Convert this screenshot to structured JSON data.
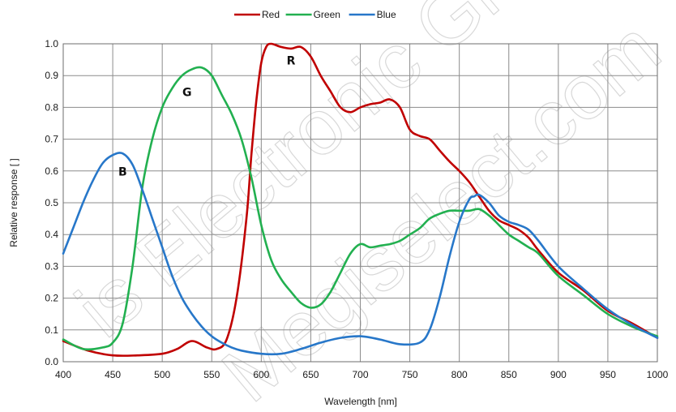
{
  "chart_data": {
    "type": "line",
    "title": "",
    "xlabel": "Wavelength [nm]",
    "ylabel": "Relative response [ ]",
    "xlim": [
      400,
      1000
    ],
    "ylim": [
      0.0,
      1.0
    ],
    "xticks": [
      400,
      450,
      500,
      550,
      600,
      650,
      700,
      750,
      800,
      850,
      900,
      950,
      1000
    ],
    "xtick_labels": [
      "400",
      "450",
      "500",
      "550",
      "600",
      "650",
      "700",
      "750",
      "800",
      "850",
      "900",
      "950",
      "1000"
    ],
    "yticks": [
      0.0,
      0.1,
      0.2,
      0.3,
      0.4,
      0.5,
      0.6,
      0.7,
      0.8,
      0.9,
      1.0
    ],
    "ytick_labels": [
      "0.0",
      "0.1",
      "0.2",
      "0.3",
      "0.4",
      "0.5",
      "0.6",
      "0.7",
      "0.8",
      "0.9",
      "1.0"
    ],
    "grid": true,
    "legend_position": "top-center",
    "series": [
      {
        "name": "Red",
        "color": "#c00000",
        "x": [
          400,
          425,
          450,
          475,
          500,
          515,
          530,
          545,
          555,
          565,
          575,
          585,
          590,
          595,
          600,
          605,
          610,
          620,
          630,
          640,
          650,
          660,
          670,
          680,
          690,
          700,
          710,
          720,
          730,
          740,
          750,
          760,
          770,
          780,
          790,
          800,
          810,
          820,
          830,
          840,
          850,
          860,
          870,
          880,
          900,
          925,
          950,
          975,
          1000
        ],
        "y": [
          0.065,
          0.035,
          0.02,
          0.02,
          0.025,
          0.04,
          0.065,
          0.045,
          0.04,
          0.07,
          0.2,
          0.45,
          0.65,
          0.82,
          0.94,
          0.99,
          1.0,
          0.99,
          0.985,
          0.99,
          0.96,
          0.9,
          0.85,
          0.8,
          0.785,
          0.8,
          0.81,
          0.815,
          0.825,
          0.8,
          0.73,
          0.71,
          0.7,
          0.665,
          0.63,
          0.6,
          0.565,
          0.52,
          0.475,
          0.445,
          0.43,
          0.415,
          0.39,
          0.35,
          0.28,
          0.225,
          0.16,
          0.12,
          0.075
        ]
      },
      {
        "name": "Green",
        "color": "#22b050",
        "x": [
          400,
          420,
          440,
          450,
          460,
          470,
          480,
          490,
          500,
          510,
          520,
          530,
          540,
          550,
          560,
          570,
          580,
          590,
          600,
          610,
          620,
          630,
          640,
          650,
          660,
          670,
          680,
          690,
          700,
          710,
          720,
          730,
          740,
          750,
          760,
          770,
          780,
          790,
          800,
          810,
          820,
          830,
          840,
          850,
          860,
          870,
          880,
          900,
          925,
          950,
          975,
          1000
        ],
        "y": [
          0.07,
          0.04,
          0.045,
          0.06,
          0.12,
          0.3,
          0.55,
          0.7,
          0.8,
          0.86,
          0.9,
          0.92,
          0.925,
          0.9,
          0.84,
          0.78,
          0.7,
          0.58,
          0.43,
          0.32,
          0.26,
          0.22,
          0.185,
          0.17,
          0.18,
          0.22,
          0.28,
          0.34,
          0.37,
          0.36,
          0.365,
          0.37,
          0.38,
          0.4,
          0.42,
          0.45,
          0.465,
          0.475,
          0.475,
          0.475,
          0.48,
          0.46,
          0.43,
          0.4,
          0.38,
          0.36,
          0.34,
          0.27,
          0.21,
          0.15,
          0.11,
          0.08
        ]
      },
      {
        "name": "Blue",
        "color": "#2777c9",
        "x": [
          400,
          410,
          420,
          430,
          440,
          450,
          460,
          470,
          480,
          490,
          500,
          510,
          520,
          530,
          540,
          550,
          560,
          570,
          580,
          600,
          620,
          640,
          660,
          680,
          700,
          720,
          740,
          760,
          770,
          780,
          790,
          800,
          810,
          815,
          820,
          830,
          840,
          850,
          860,
          870,
          880,
          900,
          925,
          950,
          975,
          1000
        ],
        "y": [
          0.34,
          0.42,
          0.5,
          0.57,
          0.625,
          0.65,
          0.655,
          0.62,
          0.54,
          0.45,
          0.36,
          0.27,
          0.2,
          0.15,
          0.11,
          0.08,
          0.06,
          0.045,
          0.035,
          0.025,
          0.025,
          0.04,
          0.06,
          0.075,
          0.08,
          0.07,
          0.055,
          0.06,
          0.1,
          0.2,
          0.33,
          0.44,
          0.51,
          0.52,
          0.525,
          0.5,
          0.46,
          0.44,
          0.43,
          0.415,
          0.38,
          0.3,
          0.23,
          0.165,
          0.115,
          0.075
        ]
      }
    ],
    "annotations": [
      {
        "text": "B",
        "x": 460,
        "y": 0.585
      },
      {
        "text": "G",
        "x": 525,
        "y": 0.835
      },
      {
        "text": "R",
        "x": 630,
        "y": 0.935
      }
    ]
  },
  "watermark": {
    "lines": [
      "is Electronic Gro",
      "Megiselect.com"
    ],
    "color": "#d8d8d8"
  }
}
